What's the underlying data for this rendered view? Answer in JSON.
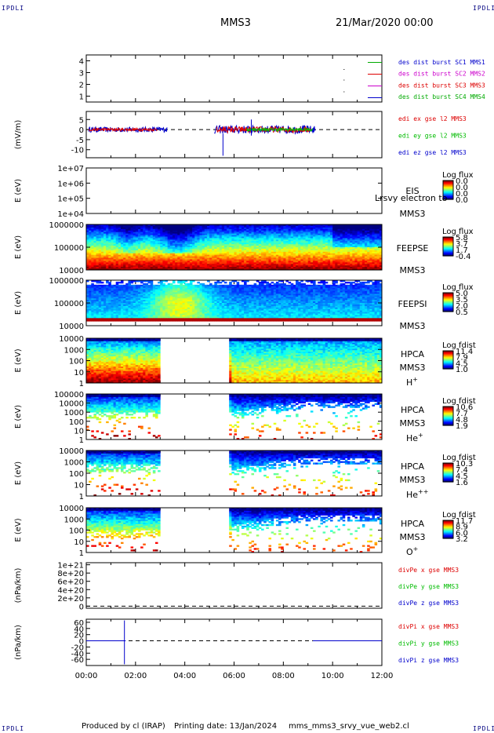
{
  "corners": {
    "tl": "IPDLI",
    "tr": "IPDLI",
    "bl": "IPDLI",
    "br": "IPDLI"
  },
  "header": {
    "spacecraft": "MMS3",
    "datetime": "21/Mar/2020 00:00"
  },
  "footer": {
    "produced_by": "Produced by cl (IRAP)",
    "printing_date": "Printing date: 13/Jan/2024",
    "script": "mms_mms3_srvy_vue_web2.cl"
  },
  "colors": {
    "mms1": "#00aa00",
    "mms2": "#dd0000",
    "mms3": "#cc00cc",
    "mms4": "#0000cc",
    "x": "#dd0000",
    "y": "#00bb00",
    "z": "#0000cc"
  },
  "chart_data": [
    {
      "type": "line",
      "panel": "burst",
      "ylim": [
        0.5,
        4.5
      ],
      "yticks": [
        "1",
        "2",
        "3",
        "4"
      ],
      "legend": [
        "des dist burst SC1 MMS1",
        "des dist burst SC2 MMS2",
        "des dist burst SC3 MMS3",
        "des dist burst SC4 MMS4"
      ]
    },
    {
      "type": "line",
      "panel": "edi",
      "ylabel": "(mV/m)",
      "ylim": [
        -14,
        9
      ],
      "yticks": [
        "5",
        "0",
        "-5",
        "-10"
      ],
      "legend": [
        "edi ex gse l2 MMS3",
        "edi ey gse l2 MMS3",
        "edi ez gse l2 MMS3"
      ]
    },
    {
      "type": "heatmap",
      "panel": "eis",
      "ylabel": "E (eV)",
      "yticks": [
        "1e+07",
        "1e+06",
        "1e+05",
        "1e+04"
      ],
      "label": "EIS",
      "label2": "MMS3",
      "overlay_text": "Lrsvy electron to",
      "cbar_title": "Log flux",
      "cbar": [
        "0.0",
        "0.0",
        "0.0",
        "0.0"
      ]
    },
    {
      "type": "heatmap",
      "panel": "feepse",
      "ylabel": "E (eV)",
      "yticks": [
        "1000000",
        "100000",
        "10000"
      ],
      "label": "FEEPSE",
      "label2": "MMS3",
      "cbar_title": "Log flux",
      "cbar": [
        "5.8",
        "3.7",
        "1.7",
        "-0.4"
      ]
    },
    {
      "type": "heatmap",
      "panel": "feepsi",
      "ylabel": "E (eV)",
      "yticks": [
        "1000000",
        "100000",
        "10000"
      ],
      "label": "FEEPSI",
      "label2": "MMS3",
      "cbar_title": "Log flux",
      "cbar": [
        "5.0",
        "3.5",
        "2.0",
        "0.5"
      ]
    },
    {
      "type": "heatmap",
      "panel": "hpca_h",
      "ylabel": "E (eV)",
      "yticks": [
        "10000",
        "1000",
        "100",
        "10",
        "1"
      ],
      "label": "HPCA",
      "label2": "MMS3",
      "species": "H",
      "charge": "+",
      "cbar_title": "Log fdist",
      "cbar": [
        "11.4",
        "7.9",
        "4.5",
        "1.0"
      ]
    },
    {
      "type": "heatmap",
      "panel": "hpca_he",
      "ylabel": "E (eV)",
      "yticks": [
        "100000",
        "10000",
        "1000",
        "100",
        "10",
        "1"
      ],
      "label": "HPCA",
      "label2": "MMS3",
      "species": "He",
      "charge": "+",
      "cbar_title": "Log fdist",
      "cbar": [
        "10.6",
        "7.7",
        "4.8",
        "1.9"
      ]
    },
    {
      "type": "heatmap",
      "panel": "hpca_hepp",
      "ylabel": "E (eV)",
      "yticks": [
        "10000",
        "1000",
        "100",
        "10",
        "1"
      ],
      "label": "HPCA",
      "label2": "MMS3",
      "species": "He",
      "charge": "++",
      "cbar_title": "Log fdist",
      "cbar": [
        "10.3",
        "7.4",
        "4.5",
        "1.6"
      ]
    },
    {
      "type": "heatmap",
      "panel": "hpca_o",
      "ylabel": "E (eV)",
      "yticks": [
        "10000",
        "1000",
        "100",
        "10",
        "1"
      ],
      "label": "HPCA",
      "label2": "MMS3",
      "species": "O",
      "charge": "+",
      "cbar_title": "Log fdist",
      "cbar": [
        "11.7",
        "8.9",
        "6.0",
        "3.2"
      ]
    },
    {
      "type": "line",
      "panel": "divpe",
      "ylabel": "(nPa/km)",
      "ylim": [
        -5e+19,
        1.05e+21
      ],
      "yticks": [
        "1e+21",
        "8e+20",
        "6e+20",
        "4e+20",
        "2e+20",
        "0"
      ],
      "legend": [
        "divPe x gse MMS3",
        "divPe y gse MMS3",
        "divPe z gse MMS3"
      ]
    },
    {
      "type": "line",
      "panel": "divpi",
      "ylabel": "(nPa/km)",
      "ylim": [
        -80,
        70
      ],
      "yticks": [
        "60",
        "40",
        "20",
        "0",
        "-20",
        "-40",
        "-60"
      ],
      "legend": [
        "divPi x gse MMS3",
        "divPi y gse MMS3",
        "divPi z gse MMS3"
      ]
    }
  ],
  "xaxis": {
    "ticks": [
      "00:00",
      "02:00",
      "04:00",
      "06:00",
      "08:00",
      "10:00",
      "12:00"
    ],
    "range_hours": [
      0,
      12
    ]
  }
}
